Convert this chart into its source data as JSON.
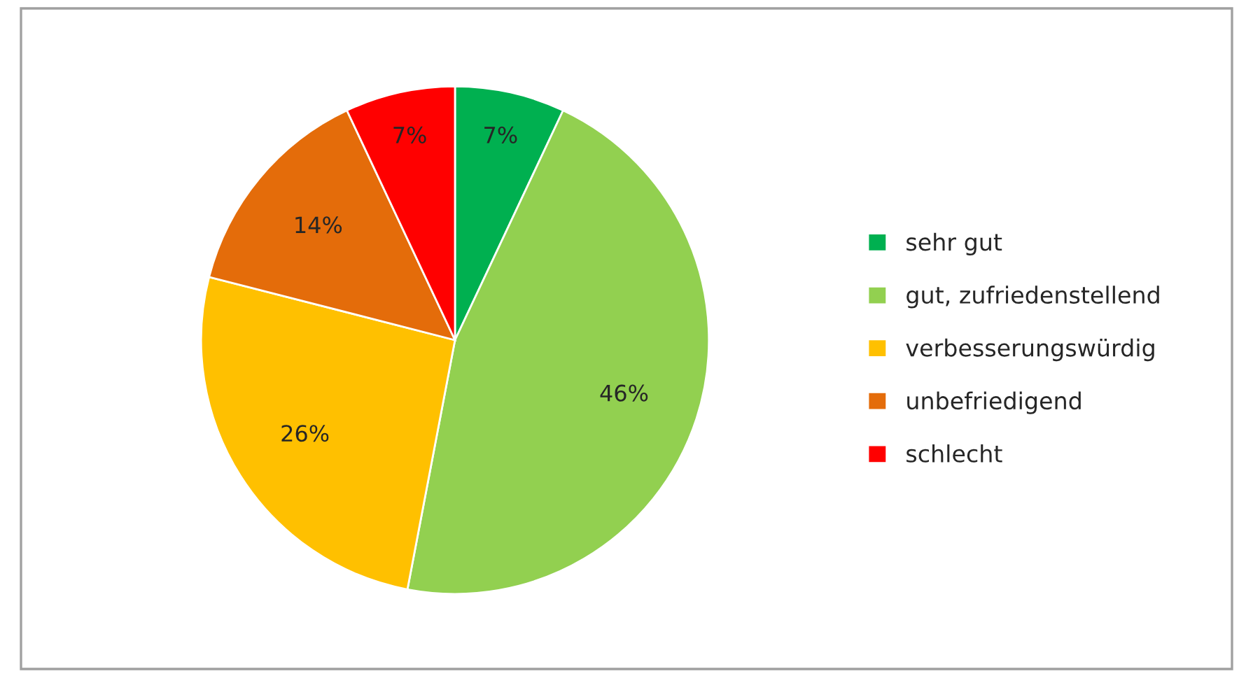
{
  "chart_data": {
    "type": "pie",
    "categories": [
      "sehr gut",
      "gut, zufriedenstellend",
      "verbesserungswürdig",
      "unbefriedigend",
      "schlecht"
    ],
    "values": [
      7,
      46,
      26,
      14,
      7
    ],
    "colors": [
      "#00b050",
      "#92d050",
      "#ffc000",
      "#e46c0a",
      "#ff0000"
    ],
    "value_labels": [
      "7%",
      "46%",
      "26%",
      "14%",
      "7%"
    ],
    "legend": "right"
  }
}
